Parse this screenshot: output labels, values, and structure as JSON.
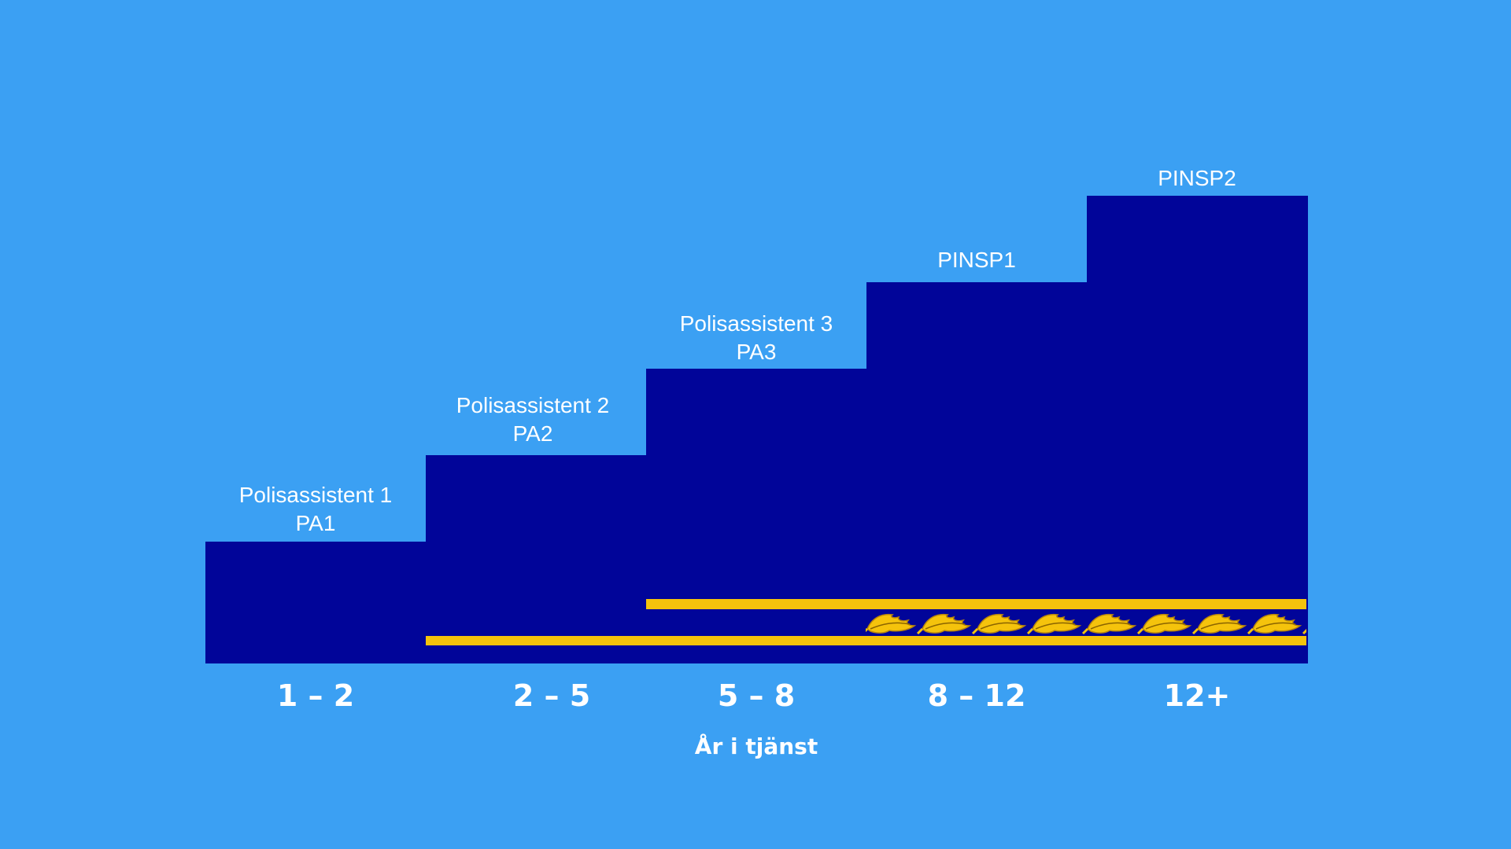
{
  "steps": [
    {
      "title": "Polisassistent 1",
      "code": "PA1"
    },
    {
      "title": "Polisassistent 2",
      "code": "PA2"
    },
    {
      "title": "Polisassistent 3",
      "code": "PA3"
    },
    {
      "title": "",
      "code": "PINSP1"
    },
    {
      "title": "",
      "code": "PINSP2"
    }
  ],
  "ranges": [
    "1 – 2",
    "2 – 5",
    "5 – 8",
    "8 – 12",
    "12+"
  ],
  "axis_title": "År i tjänst",
  "colors": {
    "background": "#3ba0f3",
    "step_fill": "#010599",
    "stripe": "#f5c30c",
    "leaf": "#f5c30c",
    "text": "#ffffff"
  },
  "insignia": {
    "stripe_icon": "gold-stripe",
    "leaf_icon": "oak-leaf-icon"
  }
}
